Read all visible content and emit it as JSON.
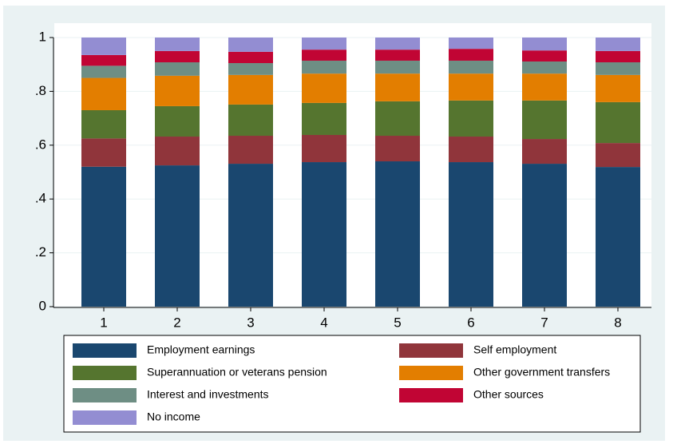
{
  "chart_data": {
    "type": "stacked_bar",
    "categories": [
      "1",
      "2",
      "3",
      "4",
      "5",
      "6",
      "7",
      "8"
    ],
    "series": [
      {
        "name": "Employment earnings",
        "color": "#1a476f",
        "values": [
          0.52,
          0.525,
          0.531,
          0.537,
          0.54,
          0.537,
          0.531,
          0.519
        ]
      },
      {
        "name": "Self employment",
        "color": "#90353b",
        "values": [
          0.105,
          0.107,
          0.104,
          0.101,
          0.095,
          0.095,
          0.092,
          0.089
        ]
      },
      {
        "name": "Superannuation or veterans pension",
        "color": "#55752f",
        "values": [
          0.105,
          0.113,
          0.116,
          0.119,
          0.128,
          0.134,
          0.143,
          0.152
        ]
      },
      {
        "name": "Other government transfers",
        "color": "#e37e00",
        "values": [
          0.12,
          0.113,
          0.11,
          0.109,
          0.103,
          0.1,
          0.1,
          0.101
        ]
      },
      {
        "name": "Interest and investments",
        "color": "#6e8e84",
        "values": [
          0.045,
          0.05,
          0.044,
          0.048,
          0.048,
          0.048,
          0.045,
          0.047
        ]
      },
      {
        "name": "Other sources",
        "color": "#c10534",
        "values": [
          0.04,
          0.042,
          0.042,
          0.041,
          0.041,
          0.044,
          0.041,
          0.042
        ]
      },
      {
        "name": "No income",
        "color": "#938dd2",
        "values": [
          0.065,
          0.05,
          0.053,
          0.045,
          0.045,
          0.042,
          0.048,
          0.05
        ]
      }
    ],
    "ylim": [
      0,
      1
    ],
    "yticks": [
      0,
      {
        "value": 0.2,
        "label": ".2"
      },
      {
        "value": 0.4,
        "label": ".4"
      },
      {
        "value": 0.6,
        "label": ".6"
      },
      {
        "value": 0.8,
        "label": ".8"
      },
      1
    ],
    "grid": true
  }
}
